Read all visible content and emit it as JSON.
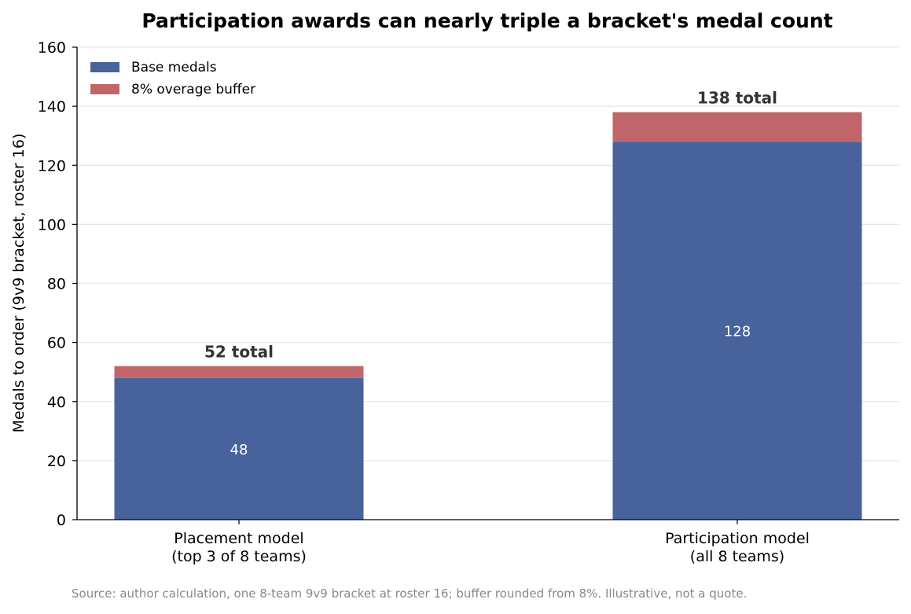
{
  "chart_data": {
    "type": "bar",
    "stacked": true,
    "title": "Participation awards can nearly triple a bracket's medal count",
    "ylabel": "Medals to order (9v9 bracket, roster 16)",
    "xlabel": "",
    "ylim": [
      0,
      160
    ],
    "yticks": [
      "0",
      "20",
      "40",
      "60",
      "80",
      "100",
      "120",
      "140",
      "160"
    ],
    "grid": true,
    "legend_position": "top-left",
    "categories": [
      [
        "Placement model",
        "(top 3 of 8 teams)"
      ],
      [
        "Participation model",
        "(all 8 teams)"
      ]
    ],
    "series": [
      {
        "name": "Base medals",
        "color": "#48639c",
        "values": [
          48,
          128
        ],
        "labels": [
          "48",
          "128"
        ]
      },
      {
        "name": "8% overage buffer",
        "color": "#c0666a",
        "values": [
          4,
          10
        ]
      }
    ],
    "total_labels": [
      "52 total",
      "138 total"
    ]
  },
  "source_note": "Source: author calculation, one 8-team 9v9 bracket at roster 16; buffer rounded from 8%. Illustrative, not a quote."
}
